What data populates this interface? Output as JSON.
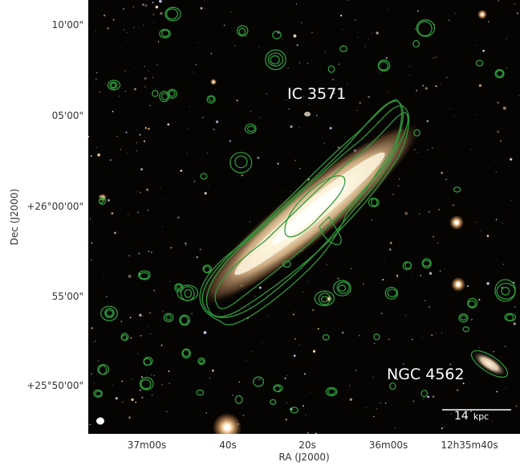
{
  "axes": {
    "ylabel": "Dec (J2000)",
    "xlabel": "RA (J2000)",
    "yticks": [
      "10'00\"",
      "05'00\"",
      "+26°00'00\"",
      "55'00\"",
      "+25°50'00\""
    ],
    "xticks": [
      "37m00s",
      "40s",
      "20s",
      "36m00s",
      "12h35m40s"
    ]
  },
  "labels": {
    "galaxy_main": "IC 3571",
    "galaxy_secondary": "NGC 4562"
  },
  "scalebar": {
    "value": "14",
    "unit": "kpc"
  },
  "colors": {
    "contour": "#2e9a3a",
    "background": "#050403",
    "galaxy_core": "#fff4dc"
  }
}
